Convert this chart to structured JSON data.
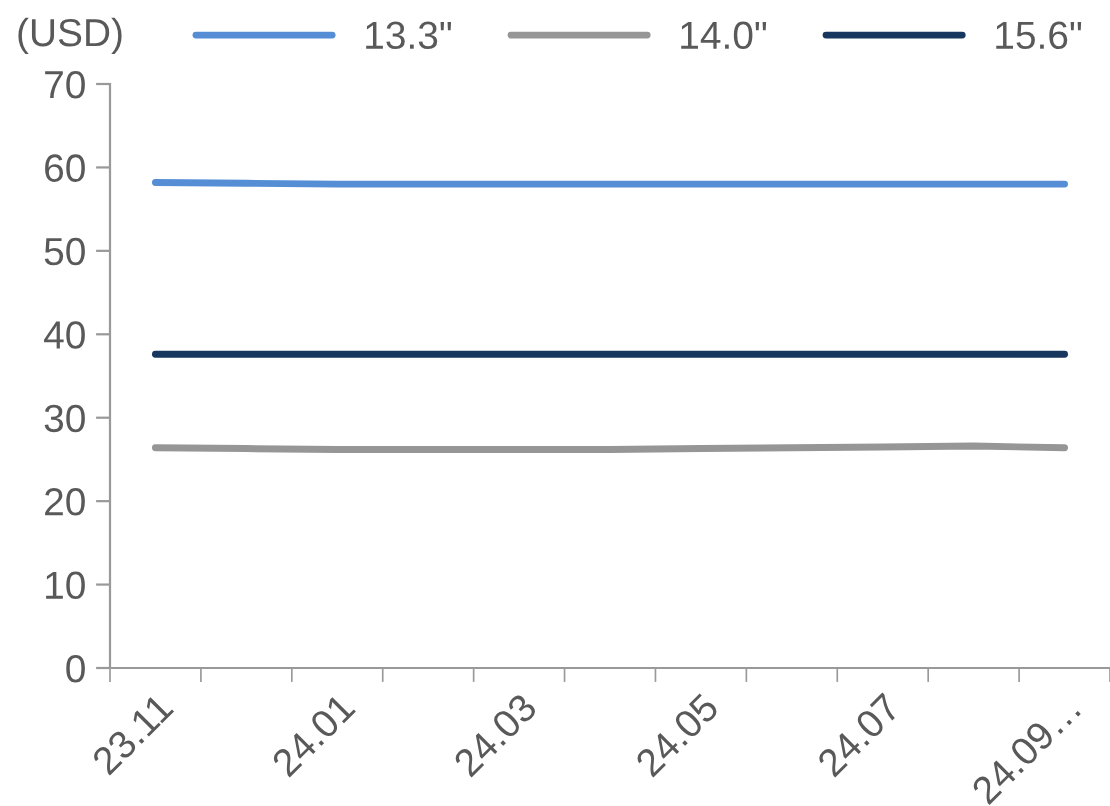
{
  "chart_data": {
    "type": "line",
    "ylabel": "(USD)",
    "categories": [
      "23.11",
      null,
      "24.01",
      null,
      "24.03",
      null,
      "24.05",
      null,
      "24.07",
      null,
      "24.09…"
    ],
    "series": [
      {
        "name": "13.3\"",
        "color": "#558ed5",
        "values": [
          58.2,
          58.1,
          58.0,
          58.0,
          58.0,
          58.0,
          58.0,
          58.0,
          58.0,
          58.0,
          58.0
        ]
      },
      {
        "name": "14.0\"",
        "color": "#969696",
        "values": [
          26.4,
          26.3,
          26.2,
          26.2,
          26.2,
          26.2,
          26.3,
          26.4,
          26.5,
          26.6,
          26.4
        ]
      },
      {
        "name": "15.6\"",
        "color": "#17375e",
        "values": [
          37.6,
          37.6,
          37.6,
          37.6,
          37.6,
          37.6,
          37.6,
          37.6,
          37.6,
          37.6,
          37.6
        ]
      }
    ],
    "ylim": [
      0,
      70
    ],
    "yticks": [
      0,
      10,
      20,
      30,
      40,
      50,
      60,
      70
    ],
    "grid": false,
    "legend": "top",
    "marker": "none",
    "line_style": "solid"
  }
}
